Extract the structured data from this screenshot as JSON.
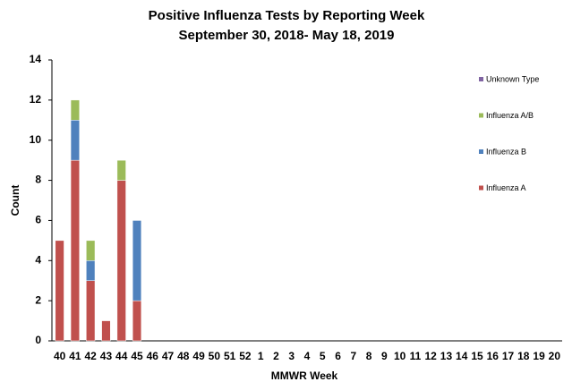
{
  "chart_data": {
    "type": "stacked_bar",
    "title": "Positive Influenza Tests by Reporting Week",
    "subtitle": "September 30, 2018- May 18, 2019",
    "x_label": "MMWR Week",
    "y_label": "Count",
    "categories": [
      "40",
      "41",
      "42",
      "43",
      "44",
      "45",
      "46",
      "47",
      "48",
      "49",
      "50",
      "51",
      "52",
      "1",
      "2",
      "3",
      "4",
      "5",
      "6",
      "7",
      "8",
      "9",
      "10",
      "11",
      "12",
      "13",
      "14",
      "15",
      "16",
      "17",
      "18",
      "19",
      "20"
    ],
    "series": [
      {
        "name": "Influenza A",
        "color": "#c0504d",
        "values": [
          5,
          9,
          3,
          1,
          8,
          2,
          0,
          0,
          0,
          0,
          0,
          0,
          0,
          0,
          0,
          0,
          0,
          0,
          0,
          0,
          0,
          0,
          0,
          0,
          0,
          0,
          0,
          0,
          0,
          0,
          0,
          0,
          0
        ]
      },
      {
        "name": "Influenza B",
        "color": "#4f81bd",
        "values": [
          0,
          2,
          1,
          0,
          0,
          4,
          0,
          0,
          0,
          0,
          0,
          0,
          0,
          0,
          0,
          0,
          0,
          0,
          0,
          0,
          0,
          0,
          0,
          0,
          0,
          0,
          0,
          0,
          0,
          0,
          0,
          0,
          0
        ]
      },
      {
        "name": "Influenza A/B",
        "color": "#9bbb59",
        "values": [
          0,
          1,
          1,
          0,
          1,
          0,
          0,
          0,
          0,
          0,
          0,
          0,
          0,
          0,
          0,
          0,
          0,
          0,
          0,
          0,
          0,
          0,
          0,
          0,
          0,
          0,
          0,
          0,
          0,
          0,
          0,
          0,
          0
        ]
      },
      {
        "name": "Unknown Type",
        "color": "#8064a2",
        "values": [
          0,
          0,
          0,
          0,
          0,
          0,
          0,
          0,
          0,
          0,
          0,
          0,
          0,
          0,
          0,
          0,
          0,
          0,
          0,
          0,
          0,
          0,
          0,
          0,
          0,
          0,
          0,
          0,
          0,
          0,
          0,
          0,
          0
        ]
      }
    ],
    "ylim": [
      0,
      14
    ],
    "yticks": [
      0,
      2,
      4,
      6,
      8,
      10,
      12,
      14
    ],
    "grid": false,
    "legend": "right"
  }
}
